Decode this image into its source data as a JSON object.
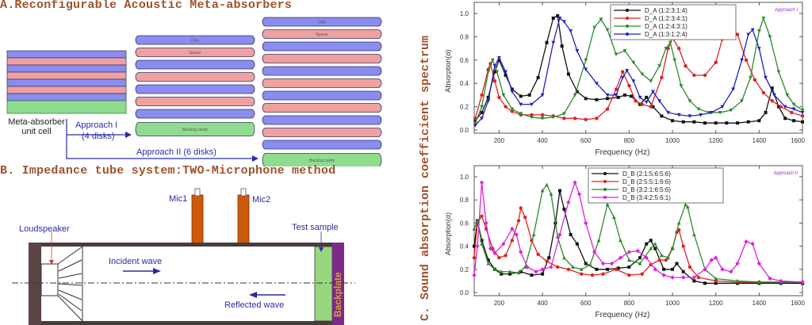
{
  "panelA": {
    "title": "A.Reconfigurable Acoustic Meta-absorbers",
    "unit_cell_label_line1": "Meta-absorber",
    "unit_cell_label_line2": "unit cell",
    "approach1_line1": "Approach I",
    "approach1_line2": "(4 disks)",
    "approach2_label": "Approach II (6 disks)",
    "disk_label": "Disk",
    "spacer_label": "Spacer",
    "cavity_label": "Backing cavity",
    "colors": {
      "disk": "#8a8cf0",
      "spacer": "#f0a0a0",
      "cavity": "#8fdc8f",
      "arrow": "#2a2aa8"
    },
    "stack_approach1": {
      "disks": 4,
      "spacers": 3
    },
    "stack_approach2": {
      "disks": 6,
      "spacers": 5
    }
  },
  "panelB": {
    "title": "B. Impedance tube system:TWO-Microphone method",
    "mic1": "Mic1",
    "mic2": "Mic2",
    "loudspeaker": "Loudspeaker",
    "test_sample": "Test sample",
    "incident_wave": "Incident wave",
    "reflected_wave": "Reflected wave",
    "backplate": "Backplate",
    "colors": {
      "mic": "#cc5a0a",
      "tube": "#4a3c3c",
      "sample": "#9ad67e",
      "backplate": "#7b2a8a",
      "backplate_text": "#d9a13a"
    }
  },
  "panelC": {
    "title": "C. Sound absorption coefficient spectrum"
  },
  "chart_data": [
    {
      "type": "line",
      "title": "",
      "annotation": "Approach I",
      "xlabel": "Frequency (Hz)",
      "ylabel": "Absorption(α)",
      "xlim": [
        85,
        1600
      ],
      "ylim": [
        0,
        1.1
      ],
      "xticks": [
        200,
        400,
        600,
        800,
        1000,
        1200,
        1400,
        1600
      ],
      "yticks": [
        0.0,
        0.2,
        0.4,
        0.6,
        0.8,
        1.0
      ],
      "ytick_labels": [
        "0.0",
        "0.2",
        "0.4",
        "0.6",
        "0.8",
        "1.0"
      ],
      "legend_position": "top-right",
      "series": [
        {
          "name": "D_A (1:2:3:1:4)",
          "color": "#111111",
          "marker": "square",
          "x": [
            90,
            120,
            150,
            180,
            200,
            230,
            260,
            300,
            340,
            380,
            420,
            450,
            470,
            490,
            520,
            560,
            600,
            650,
            700,
            750,
            780,
            810,
            850,
            880,
            910,
            950,
            1000,
            1050,
            1100,
            1150,
            1200,
            1250,
            1300,
            1350,
            1400,
            1430,
            1460,
            1490,
            1520,
            1560,
            1600
          ],
          "y": [
            0.08,
            0.15,
            0.28,
            0.5,
            0.6,
            0.47,
            0.35,
            0.29,
            0.3,
            0.45,
            0.75,
            0.96,
            0.98,
            0.72,
            0.48,
            0.33,
            0.27,
            0.26,
            0.27,
            0.28,
            0.3,
            0.29,
            0.22,
            0.28,
            0.2,
            0.12,
            0.08,
            0.07,
            0.07,
            0.06,
            0.06,
            0.06,
            0.06,
            0.07,
            0.08,
            0.15,
            0.36,
            0.2,
            0.1,
            0.08,
            0.07
          ]
        },
        {
          "name": "D_A (1:2:3:4:1)",
          "color": "#dd2222",
          "marker": "circle",
          "x": [
            90,
            120,
            150,
            160,
            180,
            200,
            230,
            260,
            300,
            350,
            400,
            450,
            500,
            550,
            600,
            650,
            700,
            740,
            770,
            800,
            830,
            860,
            900,
            950,
            980,
            1000,
            1030,
            1060,
            1100,
            1150,
            1200,
            1230,
            1260,
            1300,
            1340,
            1380,
            1420,
            1460,
            1500,
            1550,
            1600
          ],
          "y": [
            0.1,
            0.3,
            0.52,
            0.57,
            0.42,
            0.28,
            0.2,
            0.16,
            0.13,
            0.13,
            0.13,
            0.12,
            0.1,
            0.1,
            0.09,
            0.1,
            0.18,
            0.35,
            0.5,
            0.38,
            0.25,
            0.22,
            0.2,
            0.45,
            0.7,
            0.79,
            0.7,
            0.55,
            0.47,
            0.47,
            0.58,
            0.78,
            0.89,
            0.82,
            0.6,
            0.43,
            0.32,
            0.25,
            0.2,
            0.15,
            0.12
          ]
        },
        {
          "name": "D_A (1:2:4:3:1)",
          "color": "#2a8a2a",
          "marker": "triangle-down",
          "x": [
            90,
            120,
            150,
            170,
            190,
            220,
            260,
            300,
            350,
            400,
            450,
            500,
            550,
            600,
            640,
            670,
            700,
            740,
            780,
            820,
            860,
            900,
            940,
            970,
            990,
            1010,
            1040,
            1080,
            1120,
            1170,
            1220,
            1270,
            1320,
            1360,
            1400,
            1420,
            1450,
            1490,
            1530,
            1560,
            1600
          ],
          "y": [
            0.06,
            0.2,
            0.5,
            0.6,
            0.5,
            0.3,
            0.18,
            0.14,
            0.11,
            0.1,
            0.11,
            0.14,
            0.3,
            0.6,
            0.88,
            0.95,
            0.86,
            0.65,
            0.68,
            0.58,
            0.48,
            0.42,
            0.55,
            0.7,
            0.75,
            0.6,
            0.38,
            0.25,
            0.18,
            0.15,
            0.15,
            0.17,
            0.25,
            0.45,
            0.85,
            0.96,
            0.8,
            0.5,
            0.3,
            0.22,
            0.17
          ]
        },
        {
          "name": "D_A (1:3:1:2:4)",
          "color": "#2222bb",
          "marker": "triangle-down",
          "x": [
            90,
            120,
            150,
            180,
            200,
            230,
            260,
            300,
            350,
            400,
            450,
            480,
            500,
            530,
            560,
            600,
            650,
            700,
            740,
            770,
            790,
            820,
            850,
            880,
            910,
            940,
            980,
            1030,
            1080,
            1130,
            1180,
            1230,
            1280,
            1320,
            1350,
            1370,
            1400,
            1430,
            1470,
            1520,
            1560,
            1600
          ],
          "y": [
            0.04,
            0.1,
            0.25,
            0.55,
            0.62,
            0.5,
            0.33,
            0.22,
            0.22,
            0.3,
            0.75,
            0.96,
            0.93,
            0.85,
            0.68,
            0.52,
            0.4,
            0.3,
            0.3,
            0.45,
            0.51,
            0.42,
            0.28,
            0.24,
            0.33,
            0.25,
            0.15,
            0.13,
            0.12,
            0.13,
            0.15,
            0.2,
            0.35,
            0.6,
            0.82,
            0.86,
            0.7,
            0.45,
            0.3,
            0.2,
            0.18,
            0.15
          ]
        }
      ]
    },
    {
      "type": "line",
      "title": "",
      "annotation": "Approach II",
      "xlabel": "Frequency (Hz)",
      "ylabel": "Absorption(α)",
      "xlim": [
        85,
        1600
      ],
      "ylim": [
        0,
        1.1
      ],
      "xticks": [
        200,
        400,
        600,
        800,
        1000,
        1200,
        1400,
        1600
      ],
      "yticks": [
        0.0,
        0.2,
        0.4,
        0.6,
        0.8,
        1.0
      ],
      "ytick_labels": [
        "0.0",
        "0.2",
        "0.4",
        "0.6",
        "0.8",
        "1.0"
      ],
      "legend_position": "top-center",
      "series": [
        {
          "name": "D_B (2:1:5:6:5:6)",
          "color": "#111111",
          "marker": "square",
          "x": [
            85,
            100,
            120,
            150,
            180,
            210,
            250,
            300,
            350,
            400,
            430,
            460,
            480,
            500,
            530,
            560,
            600,
            650,
            700,
            750,
            800,
            850,
            880,
            900,
            920,
            960,
            1000,
            1020,
            1050,
            1100,
            1150,
            1200,
            1300,
            1400,
            1500,
            1600
          ],
          "y": [
            0.4,
            0.62,
            0.45,
            0.28,
            0.2,
            0.16,
            0.16,
            0.18,
            0.15,
            0.16,
            0.3,
            0.6,
            0.88,
            0.72,
            0.5,
            0.42,
            0.25,
            0.2,
            0.2,
            0.21,
            0.22,
            0.3,
            0.42,
            0.45,
            0.38,
            0.2,
            0.2,
            0.25,
            0.18,
            0.1,
            0.08,
            0.08,
            0.08,
            0.08,
            0.08,
            0.08
          ]
        },
        {
          "name": "D_B (2:5:5:1:6:6)",
          "color": "#dd2222",
          "marker": "circle",
          "x": [
            85,
            100,
            120,
            140,
            170,
            200,
            230,
            260,
            290,
            300,
            320,
            350,
            380,
            420,
            470,
            520,
            580,
            630,
            680,
            740,
            800,
            860,
            900,
            940,
            970,
            1000,
            1020,
            1030,
            1050,
            1080,
            1120,
            1200,
            1300,
            1400,
            1500,
            1600
          ],
          "y": [
            0.3,
            0.6,
            0.66,
            0.55,
            0.38,
            0.3,
            0.32,
            0.45,
            0.62,
            0.73,
            0.65,
            0.45,
            0.33,
            0.27,
            0.22,
            0.2,
            0.16,
            0.15,
            0.16,
            0.2,
            0.15,
            0.16,
            0.24,
            0.28,
            0.28,
            0.38,
            0.52,
            0.54,
            0.4,
            0.22,
            0.13,
            0.1,
            0.09,
            0.09,
            0.09,
            0.09
          ]
        },
        {
          "name": "D_B (3:2:1:6:5:6)",
          "color": "#2a8a2a",
          "marker": "triangle",
          "x": [
            85,
            100,
            120,
            150,
            180,
            210,
            250,
            290,
            320,
            360,
            400,
            420,
            440,
            470,
            500,
            540,
            580,
            620,
            660,
            700,
            730,
            760,
            800,
            850,
            900,
            920,
            950,
            980,
            1000,
            1030,
            1060,
            1070,
            1100,
            1150,
            1200,
            1300,
            1400,
            1500,
            1600
          ],
          "y": [
            0.55,
            0.62,
            0.42,
            0.25,
            0.2,
            0.18,
            0.18,
            0.17,
            0.22,
            0.5,
            0.88,
            0.93,
            0.85,
            0.48,
            0.3,
            0.22,
            0.2,
            0.24,
            0.45,
            0.76,
            0.65,
            0.45,
            0.28,
            0.25,
            0.38,
            0.42,
            0.32,
            0.3,
            0.38,
            0.6,
            0.76,
            0.74,
            0.5,
            0.2,
            0.12,
            0.1,
            0.09,
            0.09,
            0.09
          ]
        },
        {
          "name": "D_B (3:4:2:5:6:1)",
          "color": "#dd22dd",
          "marker": "diamond",
          "x": [
            85,
            100,
            120,
            140,
            160,
            180,
            220,
            260,
            280,
            300,
            330,
            370,
            400,
            440,
            480,
            520,
            550,
            570,
            600,
            640,
            680,
            720,
            760,
            800,
            840,
            880,
            920,
            960,
            1000,
            1050,
            1100,
            1150,
            1180,
            1200,
            1230,
            1270,
            1300,
            1340,
            1370,
            1400,
            1450,
            1500,
            1600
          ],
          "y": [
            0.15,
            0.4,
            0.95,
            0.6,
            0.38,
            0.34,
            0.42,
            0.55,
            0.5,
            0.35,
            0.22,
            0.18,
            0.2,
            0.22,
            0.5,
            0.78,
            0.95,
            0.85,
            0.6,
            0.35,
            0.25,
            0.25,
            0.3,
            0.35,
            0.36,
            0.3,
            0.2,
            0.15,
            0.13,
            0.13,
            0.13,
            0.2,
            0.28,
            0.3,
            0.2,
            0.18,
            0.25,
            0.44,
            0.42,
            0.25,
            0.12,
            0.1,
            0.09
          ]
        }
      ]
    }
  ]
}
